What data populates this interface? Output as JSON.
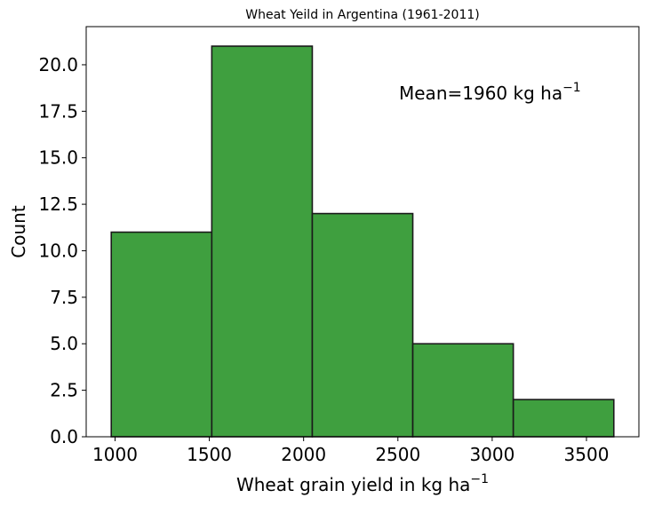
{
  "chart_data": {
    "type": "bar",
    "title": "Wheat Yeild in Argentina (1961-2011)",
    "xlabel": "Wheat grain yield in kg ha",
    "xlabel_sup": "−1",
    "ylabel": "Count",
    "annotation": "Mean=1960 kg ha",
    "annotation_sup": "−1",
    "bins": [
      {
        "start": 980,
        "end": 1513,
        "count": 11
      },
      {
        "start": 1513,
        "end": 2046,
        "count": 21
      },
      {
        "start": 2046,
        "end": 2579,
        "count": 12
      },
      {
        "start": 2579,
        "end": 3112,
        "count": 5
      },
      {
        "start": 3112,
        "end": 3645,
        "count": 2
      }
    ],
    "xlim": [
      847,
      3778
    ],
    "ylim": [
      0,
      22.05
    ],
    "xticks": [
      1000,
      1500,
      2000,
      2500,
      3000,
      3500
    ],
    "yticks": [
      0.0,
      2.5,
      5.0,
      7.5,
      10.0,
      12.5,
      15.0,
      17.5,
      20.0
    ],
    "ytick_labels": [
      "0.0",
      "2.5",
      "5.0",
      "7.5",
      "10.0",
      "12.5",
      "15.0",
      "17.5",
      "20.0"
    ],
    "colors": {
      "bar_fill": "#3f9f3f",
      "bar_edge": "#1a1a1a"
    },
    "grid": false
  }
}
